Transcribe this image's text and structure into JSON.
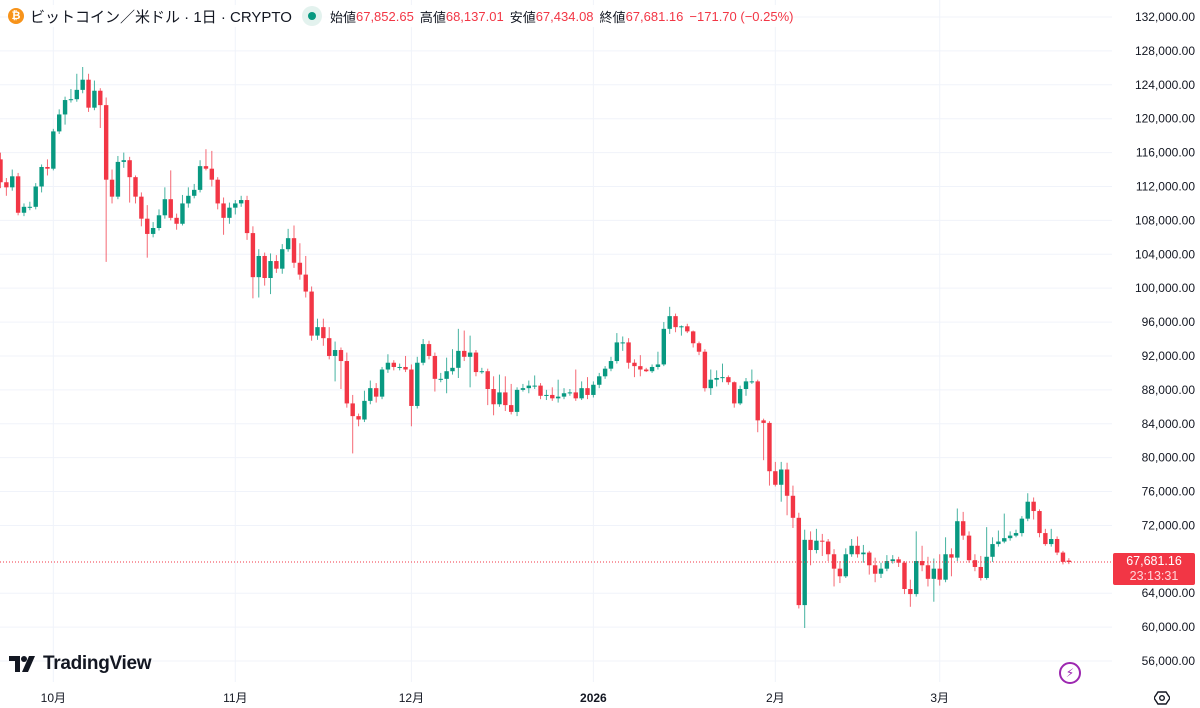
{
  "header": {
    "symbol_icon": "bitcoin-icon",
    "title": "ビットコイン／米ドル · 1日 · CRYPTO",
    "market_status_icon": "market-open-dot-icon",
    "open_label": "始値",
    "open_value": "67,852.65",
    "high_label": "高値",
    "high_value": "68,137.01",
    "low_label": "安値",
    "low_value": "67,434.08",
    "close_label": "終値",
    "close_value": "67,681.16",
    "change": "−171.70 (−0.25%)"
  },
  "price_tag": {
    "price": "67,681.16",
    "countdown": "23:13:31"
  },
  "logo": {
    "text": "TradingView"
  },
  "icons": {
    "bolt": "lightning-icon",
    "settings": "settings-icon"
  },
  "colors": {
    "up": "#089981",
    "down": "#f23645",
    "grid": "#f0f3fa",
    "last_price": "#f23645",
    "bitcoin": "#f7931a",
    "bolt": "#9c27b0"
  },
  "chart_data": {
    "type": "candlestick",
    "interval": "1日",
    "start_date": "2025-09-22",
    "ylim": [
      54000,
      133500
    ],
    "grid": true,
    "last_price": 67681.16,
    "y_ticks": [
      {
        "value": 132000,
        "label": "132,000.00"
      },
      {
        "value": 128000,
        "label": "128,000.00"
      },
      {
        "value": 124000,
        "label": "124,000.00"
      },
      {
        "value": 120000,
        "label": "120,000.00"
      },
      {
        "value": 116000,
        "label": "116,000.00"
      },
      {
        "value": 112000,
        "label": "112,000.00"
      },
      {
        "value": 108000,
        "label": "108,000.00"
      },
      {
        "value": 104000,
        "label": "104,000.00"
      },
      {
        "value": 100000,
        "label": "100,000.00"
      },
      {
        "value": 96000,
        "label": "96,000.00"
      },
      {
        "value": 92000,
        "label": "92,000.00"
      },
      {
        "value": 88000,
        "label": "88,000.00"
      },
      {
        "value": 84000,
        "label": "84,000.00"
      },
      {
        "value": 80000,
        "label": "80,000.00"
      },
      {
        "value": 76000,
        "label": "76,000.00"
      },
      {
        "value": 72000,
        "label": "72,000.00"
      },
      {
        "value": 64000,
        "label": "64,000.00"
      },
      {
        "value": 60000,
        "label": "60,000.00"
      },
      {
        "value": 56000,
        "label": "56,000.00"
      }
    ],
    "x_ticks": [
      {
        "date": "2025-10-01",
        "label": "10月",
        "bold": false
      },
      {
        "date": "2025-11-01",
        "label": "11月",
        "bold": false
      },
      {
        "date": "2025-12-01",
        "label": "12月",
        "bold": false
      },
      {
        "date": "2026-01-01",
        "label": "2026",
        "bold": true
      },
      {
        "date": "2026-02-01",
        "label": "2月",
        "bold": false
      },
      {
        "date": "2026-03-01",
        "label": "3月",
        "bold": false
      }
    ],
    "ohlc": [
      [
        115200,
        116000,
        111800,
        112500
      ],
      [
        112500,
        113000,
        110900,
        111900
      ],
      [
        111900,
        114000,
        111500,
        113200
      ],
      [
        113200,
        113600,
        108600,
        108900
      ],
      [
        108900,
        110000,
        108500,
        109600
      ],
      [
        109600,
        110200,
        109200,
        109600
      ],
      [
        109600,
        112400,
        109300,
        112000
      ],
      [
        112000,
        114600,
        111300,
        114300
      ],
      [
        114300,
        115200,
        113300,
        114100
      ],
      [
        114100,
        118800,
        113900,
        118500
      ],
      [
        118500,
        121100,
        118200,
        120500
      ],
      [
        120500,
        122600,
        119300,
        122200
      ],
      [
        122200,
        123500,
        121900,
        122300
      ],
      [
        122300,
        125300,
        122000,
        123400
      ],
      [
        123400,
        126100,
        123000,
        124600
      ],
      [
        124600,
        125300,
        120800,
        121300
      ],
      [
        121300,
        124500,
        121000,
        123300
      ],
      [
        123300,
        123600,
        118900,
        121600
      ],
      [
        121600,
        122500,
        103100,
        112800
      ],
      [
        112800,
        114000,
        110000,
        110800
      ],
      [
        110800,
        115600,
        110500,
        114900
      ],
      [
        114900,
        116000,
        114200,
        115100
      ],
      [
        115100,
        115500,
        110100,
        113100
      ],
      [
        113100,
        113300,
        110000,
        110800
      ],
      [
        110800,
        111300,
        107300,
        108200
      ],
      [
        108200,
        109800,
        103600,
        106400
      ],
      [
        106400,
        107800,
        106000,
        107100
      ],
      [
        107100,
        109300,
        106800,
        108600
      ],
      [
        108600,
        111900,
        108200,
        110500
      ],
      [
        110500,
        113900,
        108000,
        108300
      ],
      [
        108300,
        108800,
        106900,
        107600
      ],
      [
        107600,
        111000,
        107400,
        110000
      ],
      [
        110000,
        111900,
        109500,
        110900
      ],
      [
        110900,
        112300,
        110600,
        111600
      ],
      [
        111600,
        115100,
        111300,
        114400
      ],
      [
        114400,
        116400,
        113900,
        114100
      ],
      [
        114100,
        116200,
        112000,
        112800
      ],
      [
        112800,
        113100,
        109300,
        110000
      ],
      [
        110000,
        110700,
        106300,
        108300
      ],
      [
        108300,
        110100,
        107600,
        109500
      ],
      [
        109500,
        110400,
        108700,
        110000
      ],
      [
        110000,
        110900,
        109600,
        110400
      ],
      [
        110400,
        110900,
        105700,
        106500
      ],
      [
        106500,
        107300,
        98800,
        101300
      ],
      [
        101300,
        104600,
        98900,
        103800
      ],
      [
        103800,
        104200,
        100300,
        101200
      ],
      [
        101200,
        104100,
        99300,
        103200
      ],
      [
        103200,
        103900,
        101800,
        102300
      ],
      [
        102300,
        105200,
        101700,
        104600
      ],
      [
        104600,
        107000,
        104300,
        105900
      ],
      [
        105900,
        107400,
        102400,
        103000
      ],
      [
        103000,
        105300,
        101000,
        101600
      ],
      [
        101600,
        103800,
        98900,
        99600
      ],
      [
        99600,
        100200,
        93800,
        94400
      ],
      [
        94400,
        96400,
        93900,
        95400
      ],
      [
        95400,
        96400,
        93200,
        94100
      ],
      [
        94100,
        95400,
        91600,
        92000
      ],
      [
        92000,
        93700,
        89000,
        92700
      ],
      [
        92700,
        93000,
        88100,
        91400
      ],
      [
        91400,
        92400,
        85900,
        86400
      ],
      [
        86400,
        87400,
        80500,
        84900
      ],
      [
        84900,
        85200,
        83700,
        84500
      ],
      [
        84500,
        87900,
        84200,
        86700
      ],
      [
        86700,
        89100,
        86300,
        88200
      ],
      [
        88200,
        88800,
        86500,
        87200
      ],
      [
        87200,
        90700,
        86900,
        90400
      ],
      [
        90400,
        92200,
        90000,
        91200
      ],
      [
        91200,
        91500,
        90300,
        90700
      ],
      [
        90700,
        91100,
        90300,
        90700
      ],
      [
        90700,
        92000,
        90100,
        90400
      ],
      [
        90400,
        91000,
        83700,
        86100
      ],
      [
        86100,
        91900,
        85800,
        91200
      ],
      [
        91200,
        94000,
        90900,
        93400
      ],
      [
        93400,
        93800,
        91600,
        92000
      ],
      [
        92000,
        92400,
        87800,
        89300
      ],
      [
        89300,
        90000,
        88900,
        89300
      ],
      [
        89300,
        91800,
        87600,
        90200
      ],
      [
        90200,
        92800,
        89800,
        90600
      ],
      [
        90600,
        95200,
        89400,
        92600
      ],
      [
        92600,
        95000,
        91400,
        91900
      ],
      [
        91900,
        94400,
        88300,
        92400
      ],
      [
        92400,
        92700,
        89600,
        90100
      ],
      [
        90100,
        90600,
        89900,
        90200
      ],
      [
        90200,
        90500,
        86200,
        88100
      ],
      [
        88100,
        89600,
        85000,
        86300
      ],
      [
        86300,
        89800,
        86000,
        87700
      ],
      [
        87700,
        89600,
        85500,
        86200
      ],
      [
        86200,
        88700,
        85100,
        85400
      ],
      [
        85400,
        88300,
        84900,
        88000
      ],
      [
        88000,
        88700,
        87800,
        88200
      ],
      [
        88200,
        89100,
        87600,
        88500
      ],
      [
        88500,
        89700,
        88100,
        88500
      ],
      [
        88500,
        88800,
        86900,
        87300
      ],
      [
        87300,
        88000,
        86800,
        87400
      ],
      [
        87400,
        88300,
        86700,
        87000
      ],
      [
        87000,
        89200,
        86500,
        87200
      ],
      [
        87200,
        88200,
        86900,
        87600
      ],
      [
        87600,
        88100,
        87300,
        87700
      ],
      [
        87700,
        90400,
        86700,
        87000
      ],
      [
        87000,
        89000,
        86800,
        88200
      ],
      [
        88200,
        89500,
        86900,
        87400
      ],
      [
        87400,
        89000,
        87100,
        88600
      ],
      [
        88600,
        90000,
        88200,
        89600
      ],
      [
        89600,
        90800,
        89300,
        90500
      ],
      [
        90500,
        91900,
        90200,
        91400
      ],
      [
        91400,
        94700,
        91100,
        93600
      ],
      [
        93600,
        94300,
        92600,
        93600
      ],
      [
        93600,
        94100,
        90500,
        91200
      ],
      [
        91200,
        91600,
        89500,
        90800
      ],
      [
        90800,
        92100,
        89600,
        90400
      ],
      [
        90400,
        90600,
        90100,
        90200
      ],
      [
        90200,
        91000,
        90000,
        90700
      ],
      [
        90700,
        92500,
        90400,
        91000
      ],
      [
        91000,
        96000,
        90800,
        95200
      ],
      [
        95200,
        97800,
        94600,
        96700
      ],
      [
        96700,
        97000,
        94800,
        95400
      ],
      [
        95400,
        95600,
        94400,
        95500
      ],
      [
        95500,
        95800,
        94700,
        94900
      ],
      [
        94900,
        95000,
        93000,
        93500
      ],
      [
        93500,
        93700,
        92100,
        92500
      ],
      [
        92500,
        92800,
        87800,
        88200
      ],
      [
        88200,
        90400,
        87400,
        89200
      ],
      [
        89200,
        90300,
        88400,
        89400
      ],
      [
        89400,
        91100,
        88900,
        89500
      ],
      [
        89500,
        89700,
        88600,
        88900
      ],
      [
        88900,
        89000,
        85900,
        86400
      ],
      [
        86400,
        88500,
        86200,
        88100
      ],
      [
        88100,
        89400,
        87300,
        89000
      ],
      [
        89000,
        90400,
        88700,
        89000
      ],
      [
        89000,
        89200,
        83000,
        84400
      ],
      [
        84400,
        84600,
        79700,
        84100
      ],
      [
        84100,
        84300,
        76700,
        78400
      ],
      [
        78400,
        79500,
        76600,
        76800
      ],
      [
        76800,
        79500,
        74800,
        78600
      ],
      [
        78600,
        79400,
        73200,
        75500
      ],
      [
        75500,
        76700,
        71700,
        72900
      ],
      [
        72900,
        73500,
        62200,
        62600
      ],
      [
        62600,
        71500,
        59900,
        70300
      ],
      [
        70300,
        71300,
        67300,
        69100
      ],
      [
        69100,
        71600,
        68700,
        70200
      ],
      [
        70200,
        71000,
        68400,
        70100
      ],
      [
        70100,
        70400,
        67800,
        68600
      ],
      [
        68600,
        69200,
        64800,
        66900
      ],
      [
        66900,
        67800,
        65200,
        66000
      ],
      [
        66000,
        69300,
        65800,
        68600
      ],
      [
        68600,
        70400,
        68300,
        69600
      ],
      [
        69600,
        70700,
        68200,
        68600
      ],
      [
        68600,
        69700,
        67600,
        68800
      ],
      [
        68800,
        69000,
        66200,
        67300
      ],
      [
        67300,
        68200,
        65300,
        66300
      ],
      [
        66300,
        67600,
        65800,
        66900
      ],
      [
        66900,
        68500,
        66600,
        67800
      ],
      [
        67800,
        68500,
        67500,
        68000
      ],
      [
        68000,
        68300,
        67100,
        67600
      ],
      [
        67600,
        67800,
        63900,
        64500
      ],
      [
        64500,
        65600,
        62400,
        63900
      ],
      [
        63900,
        71300,
        63600,
        67800
      ],
      [
        67800,
        69600,
        66600,
        67300
      ],
      [
        67300,
        68300,
        64800,
        65700
      ],
      [
        65700,
        68100,
        63000,
        66900
      ],
      [
        66900,
        68600,
        64900,
        65600
      ],
      [
        65600,
        70600,
        65300,
        68600
      ],
      [
        68600,
        69300,
        66000,
        68200
      ],
      [
        68200,
        74000,
        67800,
        72500
      ],
      [
        72500,
        73600,
        70300,
        70800
      ],
      [
        70800,
        71300,
        67600,
        67900
      ],
      [
        67900,
        68600,
        66600,
        67100
      ],
      [
        67100,
        68400,
        65500,
        65800
      ],
      [
        65800,
        71800,
        65600,
        68300
      ],
      [
        68300,
        70600,
        67700,
        69800
      ],
      [
        69800,
        71400,
        69500,
        70100
      ],
      [
        70100,
        73400,
        69900,
        70500
      ],
      [
        70500,
        71300,
        70200,
        70800
      ],
      [
        70800,
        71500,
        70600,
        71100
      ],
      [
        71100,
        73100,
        70700,
        72800
      ],
      [
        72800,
        75800,
        72500,
        74800
      ],
      [
        74800,
        75300,
        72700,
        73700
      ],
      [
        73700,
        73900,
        70600,
        71100
      ],
      [
        71100,
        71600,
        69600,
        69800
      ],
      [
        69800,
        71600,
        69500,
        70400
      ],
      [
        70400,
        70700,
        68500,
        68800
      ],
      [
        68800,
        69000,
        67400,
        67700
      ],
      [
        67852.65,
        68137.01,
        67434.08,
        67681.16
      ]
    ]
  }
}
